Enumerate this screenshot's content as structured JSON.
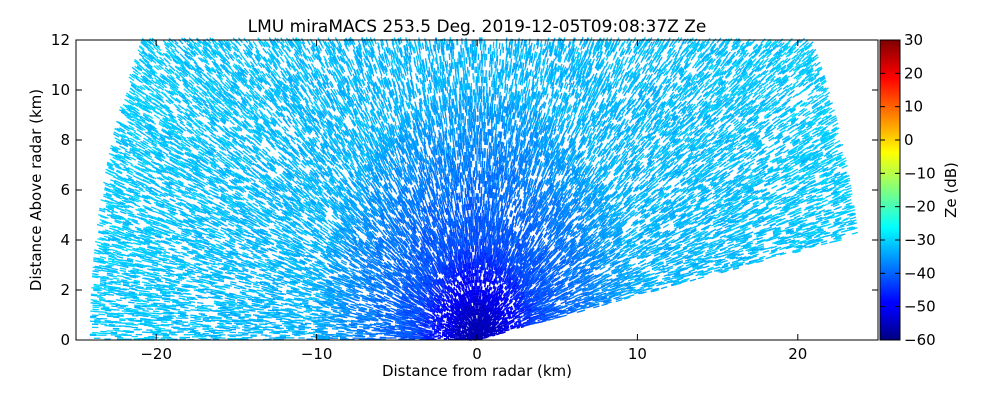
{
  "chart_data": {
    "type": "heatmap",
    "title": "LMU miraMACS 253.5 Deg. 2019-12-05T09:08:37Z  Ze",
    "xlabel": "Distance from radar (km)",
    "ylabel": "Distance Above radar  (km)",
    "xlim": [
      -25,
      25
    ],
    "ylim": [
      0,
      12
    ],
    "xticks": [
      -20,
      -10,
      0,
      10,
      20
    ],
    "yticks": [
      0,
      2,
      4,
      6,
      8,
      10,
      12
    ],
    "colorbar": {
      "label": "Ze (dB)",
      "range": [
        -60,
        30
      ],
      "ticks": [
        30,
        20,
        10,
        0,
        -10,
        -20,
        -30,
        -40,
        -50,
        -60
      ],
      "colormap": "jet"
    },
    "scan": {
      "description": "RHI sector scan of reflectivity",
      "max_range_km": 24,
      "elevation_deg_range": [
        10,
        180
      ],
      "ze_near_radar_db": -55,
      "ze_far_range_db": -30
    }
  }
}
